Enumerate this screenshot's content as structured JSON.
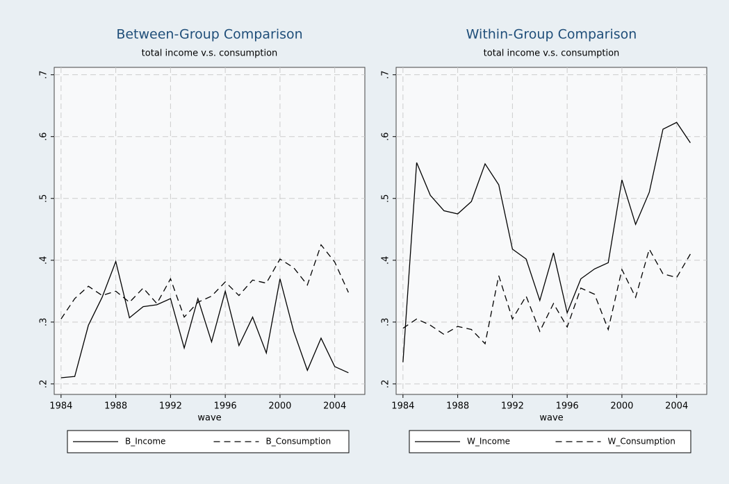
{
  "chart_data": [
    {
      "type": "line",
      "title": "Between-Group Comparison",
      "subtitle": "total income v.s. consumption",
      "x_label": "wave",
      "x": [
        1984,
        1985,
        1986,
        1987,
        1988,
        1989,
        1990,
        1991,
        1992,
        1993,
        1994,
        1995,
        1996,
        1997,
        1998,
        1999,
        2000,
        2001,
        2002,
        2003,
        2004,
        2005
      ],
      "series": [
        {
          "name": "B_Income",
          "color": "#000000",
          "line_style": "solid",
          "values": [
            0.21,
            0.212,
            0.295,
            0.34,
            0.398,
            0.307,
            0.325,
            0.328,
            0.338,
            0.258,
            0.338,
            0.268,
            0.35,
            0.262,
            0.308,
            0.25,
            0.37,
            0.285,
            0.222,
            0.274,
            0.228,
            0.218
          ]
        },
        {
          "name": "B_Consumption",
          "color": "#000000",
          "line_style": "dashed",
          "values": [
            0.305,
            0.338,
            0.358,
            0.343,
            0.35,
            0.332,
            0.355,
            0.33,
            0.37,
            0.308,
            0.332,
            0.342,
            0.365,
            0.343,
            0.368,
            0.363,
            0.402,
            0.388,
            0.36,
            0.425,
            0.397,
            0.348
          ]
        }
      ],
      "xlim": [
        1983.5,
        2006.2
      ],
      "xticks": [
        1984,
        1988,
        1992,
        1996,
        2000,
        2004
      ],
      "ylim": [
        0.183,
        0.712
      ],
      "yticks": [
        {
          "value": 0.2,
          "label": ".2"
        },
        {
          "value": 0.3,
          "label": ".3"
        },
        {
          "value": 0.4,
          "label": ".4"
        },
        {
          "value": 0.5,
          "label": ".5"
        },
        {
          "value": 0.6,
          "label": ".6"
        },
        {
          "value": 0.7,
          "label": ".7"
        }
      ],
      "grid": true,
      "legend": "bottom"
    },
    {
      "type": "line",
      "title": "Within-Group Comparison",
      "subtitle": "total income v.s. consumption",
      "x_label": "wave",
      "x": [
        1984,
        1985,
        1986,
        1987,
        1988,
        1989,
        1990,
        1991,
        1992,
        1993,
        1994,
        1995,
        1996,
        1997,
        1998,
        1999,
        2000,
        2001,
        2002,
        2003,
        2004,
        2005
      ],
      "series": [
        {
          "name": "W_Income",
          "color": "#000000",
          "line_style": "solid",
          "values": [
            0.235,
            0.558,
            0.505,
            0.48,
            0.475,
            0.495,
            0.556,
            0.522,
            0.418,
            0.402,
            0.335,
            0.412,
            0.315,
            0.37,
            0.386,
            0.396,
            0.53,
            0.458,
            0.51,
            0.612,
            0.623,
            0.59
          ]
        },
        {
          "name": "W_Consumption",
          "color": "#000000",
          "line_style": "dashed",
          "values": [
            0.29,
            0.305,
            0.295,
            0.28,
            0.293,
            0.288,
            0.265,
            0.375,
            0.305,
            0.342,
            0.285,
            0.33,
            0.292,
            0.355,
            0.345,
            0.288,
            0.385,
            0.34,
            0.418,
            0.378,
            0.372,
            0.41
          ]
        }
      ],
      "xlim": [
        1983.5,
        2006.2
      ],
      "xticks": [
        1984,
        1988,
        1992,
        1996,
        2000,
        2004
      ],
      "ylim": [
        0.183,
        0.712
      ],
      "yticks": [
        {
          "value": 0.2,
          "label": ".2"
        },
        {
          "value": 0.3,
          "label": ".3"
        },
        {
          "value": 0.4,
          "label": ".4"
        },
        {
          "value": 0.5,
          "label": ".5"
        },
        {
          "value": 0.6,
          "label": ".6"
        },
        {
          "value": 0.7,
          "label": ".7"
        }
      ],
      "grid": true,
      "legend": "bottom"
    }
  ]
}
